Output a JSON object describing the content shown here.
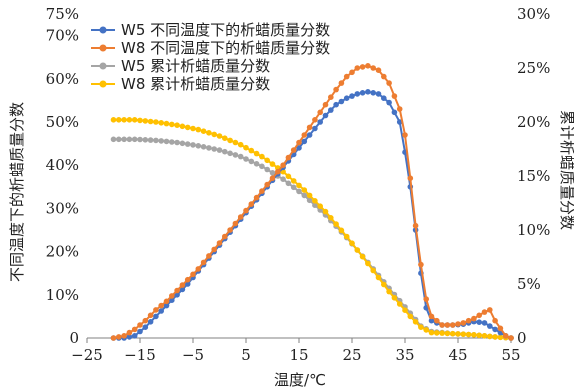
{
  "chart_data": {
    "type": "line",
    "xlabel": "温度/℃",
    "ylabel_left": "不同温度下的析蜡质量分数",
    "ylabel_right": "累计析蜡质量分数",
    "xlim": [
      -25,
      55
    ],
    "ylim_left": [
      0,
      75
    ],
    "ylim_right": [
      0,
      30
    ],
    "x_ticks": [
      "−25",
      "−15",
      "−5",
      "5",
      "15",
      "25",
      "35",
      "45",
      "55"
    ],
    "y_ticks_left": [
      "0",
      "10%",
      "20%",
      "30%",
      "40%",
      "50%",
      "60%",
      "70%",
      "75%"
    ],
    "y_ticks_right": [
      "0",
      "5%",
      "10%",
      "15%",
      "20%",
      "25%",
      "30%"
    ],
    "legend_position": "top-left",
    "series": [
      {
        "name": "W5 不同温度下的析蜡质量分数",
        "axis": "left",
        "color": "#4472C4",
        "points": [
          [
            -20,
            0
          ],
          [
            -18,
            0
          ],
          [
            -16,
            0.5
          ],
          [
            -14,
            2.5
          ],
          [
            -12,
            5
          ],
          [
            -10,
            7.5
          ],
          [
            -8,
            10
          ],
          [
            -6,
            12.5
          ],
          [
            -4,
            15.5
          ],
          [
            -2,
            18.5
          ],
          [
            0,
            21.5
          ],
          [
            2,
            24.5
          ],
          [
            4,
            27.5
          ],
          [
            6,
            30.5
          ],
          [
            8,
            33.5
          ],
          [
            10,
            36.5
          ],
          [
            12,
            39.5
          ],
          [
            14,
            42.5
          ],
          [
            16,
            45.5
          ],
          [
            18,
            48.5
          ],
          [
            20,
            51.5
          ],
          [
            22,
            54
          ],
          [
            24,
            55.5
          ],
          [
            26,
            56.5
          ],
          [
            28,
            57
          ],
          [
            30,
            56.5
          ],
          [
            32,
            54.5
          ],
          [
            34,
            50
          ],
          [
            35,
            43
          ],
          [
            36,
            35
          ],
          [
            37,
            25
          ],
          [
            38,
            15
          ],
          [
            39,
            7
          ],
          [
            40,
            4
          ],
          [
            42,
            3
          ],
          [
            44,
            3
          ],
          [
            46,
            3.2
          ],
          [
            48,
            3.8
          ],
          [
            50,
            3.5
          ],
          [
            52,
            2
          ],
          [
            54,
            0.5
          ],
          [
            55,
            0
          ]
        ]
      },
      {
        "name": "W8 不同温度下的析蜡质量分数",
        "axis": "left",
        "color": "#ED7D31",
        "points": [
          [
            -20,
            0
          ],
          [
            -18,
            0.5
          ],
          [
            -16,
            2
          ],
          [
            -14,
            4
          ],
          [
            -12,
            6.5
          ],
          [
            -10,
            8.5
          ],
          [
            -8,
            11
          ],
          [
            -6,
            13.5
          ],
          [
            -4,
            16
          ],
          [
            -2,
            19
          ],
          [
            0,
            22
          ],
          [
            2,
            25
          ],
          [
            4,
            28
          ],
          [
            6,
            31
          ],
          [
            8,
            34
          ],
          [
            10,
            37
          ],
          [
            12,
            40
          ],
          [
            14,
            43.5
          ],
          [
            16,
            47
          ],
          [
            18,
            50.5
          ],
          [
            20,
            54
          ],
          [
            22,
            57.5
          ],
          [
            24,
            60.5
          ],
          [
            26,
            62.5
          ],
          [
            28,
            63
          ],
          [
            30,
            62
          ],
          [
            32,
            59
          ],
          [
            34,
            53
          ],
          [
            35,
            47
          ],
          [
            36,
            37
          ],
          [
            37,
            26
          ],
          [
            38,
            17
          ],
          [
            39,
            9
          ],
          [
            40,
            5
          ],
          [
            42,
            3
          ],
          [
            44,
            3
          ],
          [
            46,
            3.5
          ],
          [
            48,
            4.5
          ],
          [
            50,
            6
          ],
          [
            51,
            6.5
          ],
          [
            52,
            4
          ],
          [
            54,
            0.5
          ],
          [
            55,
            0
          ]
        ]
      },
      {
        "name": "W5 累计析蜡质量分数",
        "axis": "right",
        "color": "#A5A5A5",
        "points": [
          [
            -20,
            18.4
          ],
          [
            -16,
            18.4
          ],
          [
            -12,
            18.3
          ],
          [
            -8,
            18.1
          ],
          [
            -4,
            17.8
          ],
          [
            0,
            17.4
          ],
          [
            4,
            16.8
          ],
          [
            8,
            15.9
          ],
          [
            12,
            14.7
          ],
          [
            16,
            13.2
          ],
          [
            20,
            11.4
          ],
          [
            24,
            9.3
          ],
          [
            28,
            7
          ],
          [
            32,
            4.6
          ],
          [
            36,
            2.3
          ],
          [
            38,
            1.1
          ],
          [
            40,
            0.6
          ],
          [
            44,
            0.4
          ],
          [
            48,
            0.3
          ],
          [
            52,
            0.1
          ],
          [
            55,
            0
          ]
        ]
      },
      {
        "name": "W8 累计析蜡质量分数",
        "axis": "right",
        "color": "#FFC000",
        "points": [
          [
            -20,
            20.2
          ],
          [
            -16,
            20.2
          ],
          [
            -12,
            20
          ],
          [
            -8,
            19.7
          ],
          [
            -4,
            19.3
          ],
          [
            0,
            18.7
          ],
          [
            4,
            17.9
          ],
          [
            8,
            16.8
          ],
          [
            12,
            15.4
          ],
          [
            16,
            13.7
          ],
          [
            20,
            11.7
          ],
          [
            24,
            9.4
          ],
          [
            28,
            6.9
          ],
          [
            32,
            4.3
          ],
          [
            36,
            2
          ],
          [
            38,
            1
          ],
          [
            40,
            0.5
          ],
          [
            44,
            0.4
          ],
          [
            48,
            0.3
          ],
          [
            52,
            0.1
          ],
          [
            55,
            0
          ]
        ]
      }
    ]
  }
}
